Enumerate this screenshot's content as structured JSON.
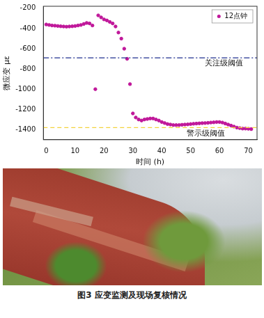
{
  "chart_data": {
    "type": "scatter",
    "x_label": "时间 (h)",
    "y_label": "微应变 με",
    "x": [
      0,
      1,
      2,
      3,
      4,
      5,
      6,
      7,
      8,
      9,
      10,
      11,
      12,
      13,
      14,
      15,
      16,
      17,
      18,
      19,
      20,
      21,
      22,
      23,
      24,
      25,
      26,
      27,
      28,
      29,
      30,
      31,
      32,
      33,
      34,
      35,
      36,
      37,
      38,
      39,
      40,
      41,
      42,
      43,
      44,
      45,
      46,
      47,
      48,
      49,
      50,
      51,
      52,
      53,
      54,
      55,
      56,
      57,
      58,
      59,
      60,
      61,
      62,
      63,
      64,
      65,
      66,
      67,
      68,
      69,
      70,
      71
    ],
    "series": [
      {
        "name": "12点钟",
        "color": "#c0189a",
        "marker": "circle",
        "values": [
          -360,
          -365,
          -370,
          -372,
          -375,
          -378,
          -380,
          -382,
          -380,
          -378,
          -375,
          -370,
          -365,
          -355,
          -345,
          -350,
          -370,
          -1000,
          -270,
          -290,
          -310,
          -320,
          -335,
          -350,
          -380,
          -440,
          -500,
          -600,
          -700,
          -950,
          -1240,
          -1280,
          -1300,
          -1310,
          -1300,
          -1295,
          -1290,
          -1290,
          -1300,
          -1310,
          -1325,
          -1335,
          -1345,
          -1350,
          -1355,
          -1355,
          -1355,
          -1352,
          -1350,
          -1348,
          -1345,
          -1342,
          -1340,
          -1338,
          -1336,
          -1335,
          -1333,
          -1330,
          -1328,
          -1325,
          -1325,
          -1330,
          -1340,
          -1350,
          -1360,
          -1370,
          -1380,
          -1385,
          -1390,
          -1390,
          -1392,
          -1395
        ]
      }
    ],
    "xlim": [
      -1,
      73
    ],
    "xticks": [
      0,
      10,
      20,
      30,
      40,
      50,
      60,
      70
    ],
    "ylim": [
      -1500,
      -180
    ],
    "yticks": [
      -1400,
      -1200,
      -1000,
      -800,
      -600,
      -400,
      -200
    ],
    "grid": false,
    "legend": "upper right",
    "thresholds": [
      {
        "label": "关注级阈值",
        "value": -690,
        "color": "#1f2f8f",
        "line_style": "dashdot"
      },
      {
        "label": "警示级阈值",
        "value": -1380,
        "color": "#f2d23c",
        "line_style": "dashed"
      }
    ]
  },
  "caption": "图3 应变监测及现场复核情况"
}
